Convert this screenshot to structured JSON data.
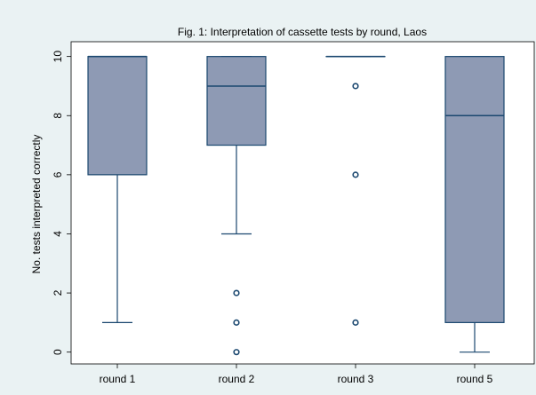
{
  "chart_data": {
    "type": "box",
    "title": "Fig. 1: Interpretation of cassette tests by round, Laos",
    "y_label": "No. tests interpreted correctly",
    "categories": [
      "round 1",
      "round 2",
      "round 3",
      "round 5"
    ],
    "boxes": [
      {
        "min": 1,
        "q1": 6,
        "median": 10,
        "q3": 10,
        "max": 10,
        "outliers": []
      },
      {
        "min": 4,
        "q1": 7,
        "median": 9,
        "q3": 10,
        "max": 10,
        "outliers": [
          2,
          1,
          0
        ]
      },
      {
        "min": 10,
        "q1": 10,
        "median": 10,
        "q3": 10,
        "max": 10,
        "outliers": [
          9,
          6,
          1
        ]
      },
      {
        "min": 0,
        "q1": 1,
        "median": 8,
        "q3": 10,
        "max": 10,
        "outliers": []
      }
    ],
    "color": "#8e9ab4",
    "line_color": "#1a476f",
    "ylim": [
      -0.4,
      10.5
    ],
    "yticks": [
      0,
      2,
      4,
      6,
      8,
      10
    ],
    "grid": false
  }
}
